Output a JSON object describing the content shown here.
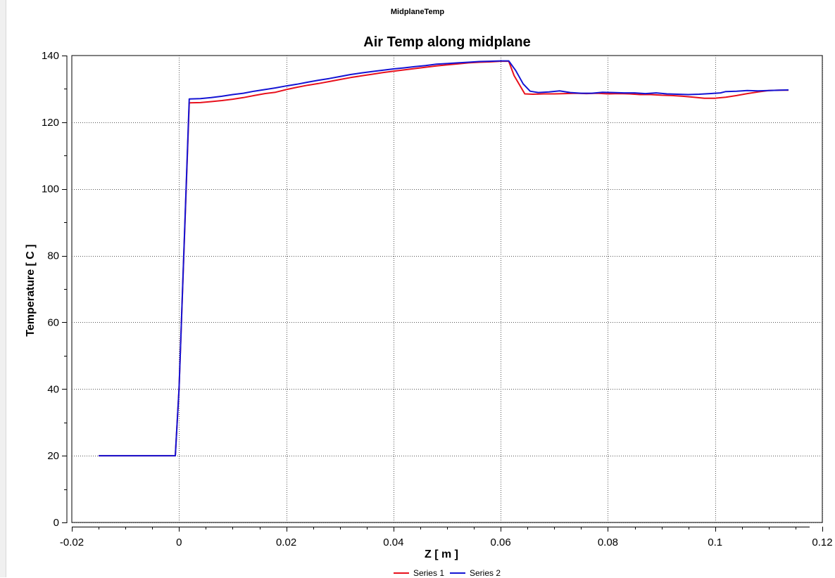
{
  "window": {
    "title": "MidplaneTemp"
  },
  "chart_data": {
    "type": "line",
    "title": "Air Temp along midplane",
    "xlabel": "Z [ m ]",
    "ylabel": "Temperature [ C ]",
    "xlim": [
      -0.02,
      0.12
    ],
    "ylim": [
      0,
      140
    ],
    "xticks": [
      -0.02,
      0,
      0.02,
      0.04,
      0.06,
      0.08,
      0.1,
      0.12
    ],
    "xtick_labels": [
      "-0.02",
      "0",
      "0.02",
      "0.04",
      "0.06",
      "0.08",
      "0.1",
      "0.12"
    ],
    "yticks": [
      0,
      20,
      40,
      60,
      80,
      100,
      120,
      140
    ],
    "ytick_labels": [
      "0",
      "20",
      "40",
      "60",
      "80",
      "100",
      "120",
      "140"
    ],
    "grid": true,
    "legend_position": "bottom-center",
    "series": [
      {
        "name": "Series 1",
        "color": "#e8101c",
        "x": [
          -0.015,
          -0.0007,
          0.0,
          0.0019,
          0.004,
          0.006,
          0.008,
          0.01,
          0.012,
          0.014,
          0.016,
          0.018,
          0.02,
          0.022,
          0.024,
          0.026,
          0.028,
          0.03,
          0.032,
          0.034,
          0.036,
          0.038,
          0.04,
          0.042,
          0.044,
          0.046,
          0.048,
          0.05,
          0.052,
          0.054,
          0.056,
          0.058,
          0.06,
          0.0615,
          0.0625,
          0.0645,
          0.066,
          0.068,
          0.07,
          0.072,
          0.074,
          0.076,
          0.078,
          0.08,
          0.082,
          0.084,
          0.086,
          0.088,
          0.09,
          0.092,
          0.094,
          0.096,
          0.098,
          0.1,
          0.102,
          0.104,
          0.106,
          0.108,
          0.11,
          0.112,
          0.1137
        ],
        "y": [
          20.0,
          20.0,
          40.0,
          125.8,
          125.9,
          126.2,
          126.5,
          126.9,
          127.4,
          128.0,
          128.6,
          129.0,
          129.8,
          130.5,
          131.1,
          131.6,
          132.2,
          132.8,
          133.4,
          133.9,
          134.4,
          134.9,
          135.3,
          135.7,
          136.1,
          136.5,
          136.9,
          137.2,
          137.5,
          137.8,
          138.0,
          138.1,
          138.3,
          138.3,
          134.0,
          128.5,
          128.4,
          128.5,
          128.5,
          128.6,
          128.7,
          128.6,
          128.7,
          128.5,
          128.6,
          128.5,
          128.3,
          128.3,
          128.1,
          128.0,
          127.8,
          127.5,
          127.2,
          127.2,
          127.5,
          128.0,
          128.6,
          129.1,
          129.5,
          129.6,
          129.6
        ]
      },
      {
        "name": "Series 2",
        "color": "#1414d4",
        "x": [
          -0.015,
          -0.0007,
          0.0,
          0.0019,
          0.004,
          0.006,
          0.008,
          0.01,
          0.012,
          0.014,
          0.016,
          0.018,
          0.02,
          0.022,
          0.024,
          0.026,
          0.028,
          0.03,
          0.032,
          0.034,
          0.036,
          0.038,
          0.04,
          0.042,
          0.044,
          0.046,
          0.048,
          0.05,
          0.052,
          0.054,
          0.056,
          0.058,
          0.06,
          0.0615,
          0.0628,
          0.0642,
          0.0655,
          0.067,
          0.069,
          0.071,
          0.073,
          0.075,
          0.077,
          0.079,
          0.081,
          0.083,
          0.085,
          0.087,
          0.089,
          0.091,
          0.093,
          0.095,
          0.097,
          0.099,
          0.101,
          0.102,
          0.104,
          0.106,
          0.108,
          0.11,
          0.112,
          0.1137
        ],
        "y": [
          20.0,
          20.0,
          40.0,
          127.0,
          127.1,
          127.4,
          127.8,
          128.3,
          128.7,
          129.3,
          129.8,
          130.3,
          130.9,
          131.4,
          132.0,
          132.6,
          133.1,
          133.7,
          134.3,
          134.8,
          135.2,
          135.6,
          136.0,
          136.3,
          136.7,
          137.0,
          137.4,
          137.6,
          137.8,
          138.0,
          138.2,
          138.3,
          138.4,
          138.4,
          135.5,
          131.5,
          129.3,
          128.9,
          129.1,
          129.4,
          128.9,
          128.7,
          128.7,
          129.0,
          128.9,
          128.8,
          128.8,
          128.6,
          128.8,
          128.5,
          128.4,
          128.3,
          128.4,
          128.6,
          128.8,
          129.2,
          129.3,
          129.5,
          129.4,
          129.5,
          129.6,
          129.7
        ]
      }
    ]
  }
}
